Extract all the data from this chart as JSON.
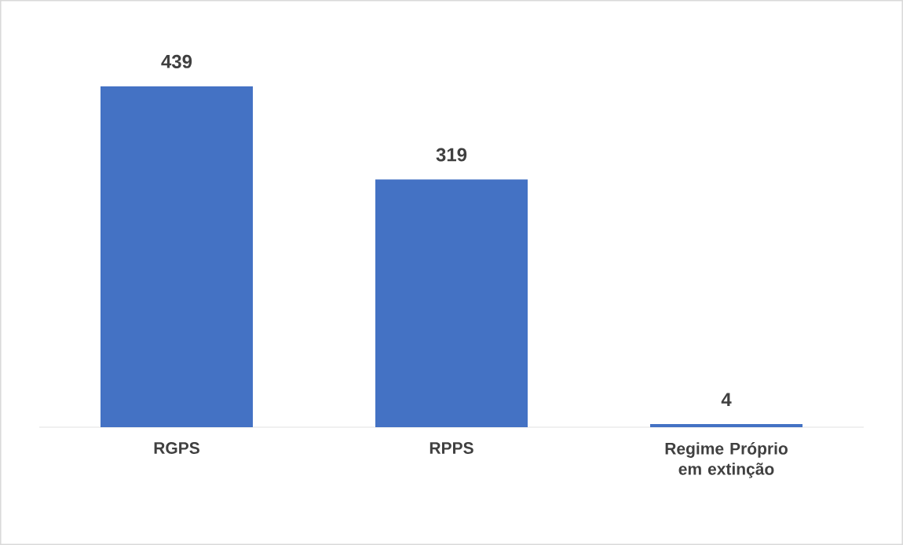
{
  "chart_data": {
    "type": "bar",
    "categories": [
      "RGPS",
      "RPPS",
      "Regime Próprio em extinção"
    ],
    "values": [
      439,
      319,
      4
    ],
    "color": "#4472c4",
    "data_labels": true
  }
}
